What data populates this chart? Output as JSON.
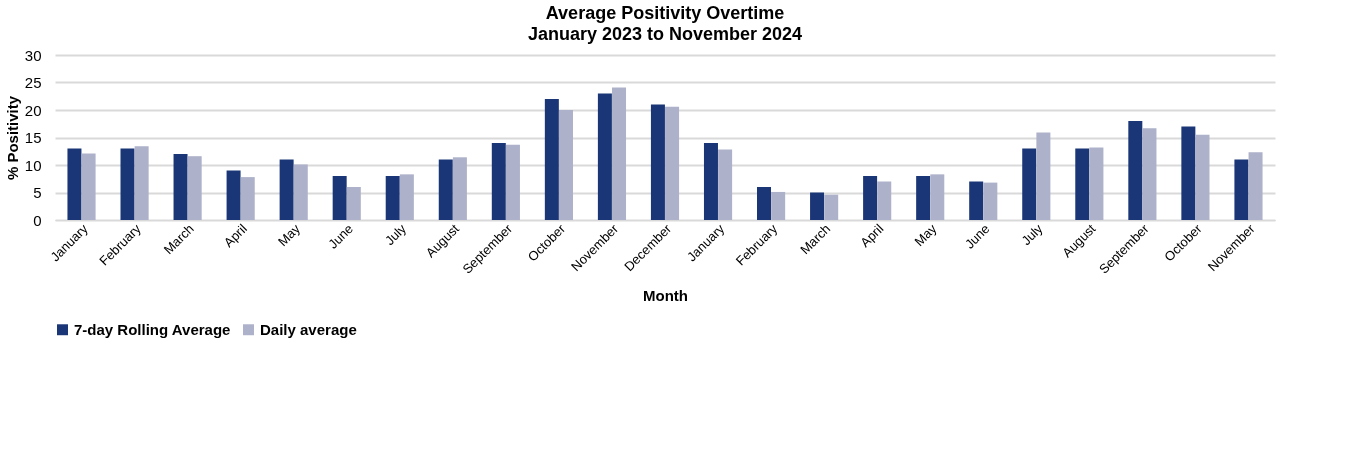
{
  "chart_data": {
    "type": "bar",
    "title": "Average Positivity Overtime",
    "subtitle": "January 2023 to November 2024",
    "xlabel": "Month",
    "ylabel": "% Positivity",
    "categories": [
      "January",
      "February",
      "March",
      "April",
      "May",
      "June",
      "July",
      "August",
      "September",
      "October",
      "November",
      "December",
      "January",
      "February",
      "March",
      "April",
      "May",
      "June",
      "July",
      "August",
      "September",
      "October",
      "November"
    ],
    "series": [
      {
        "name": "7-day Rolling Average",
        "color": "#1b3677",
        "values": [
          13,
          13,
          12,
          9,
          11,
          8,
          8,
          11,
          14,
          22,
          23,
          21,
          14,
          6,
          5,
          8,
          8,
          7,
          13,
          13,
          18,
          17,
          11
        ]
      },
      {
        "name": "Daily average",
        "color": "#adb1c9",
        "values": [
          12.1,
          13.4,
          11.6,
          7.8,
          10.1,
          6.0,
          8.3,
          11.4,
          13.7,
          20.0,
          24.1,
          20.6,
          12.8,
          5.1,
          4.6,
          7.0,
          8.3,
          6.8,
          15.9,
          13.2,
          16.7,
          15.5,
          12.3
        ]
      }
    ],
    "ylim": [
      0,
      30
    ],
    "yticks": [
      0,
      5,
      10,
      15,
      20,
      25,
      30
    ],
    "grid": "y",
    "legend": "bottom"
  }
}
